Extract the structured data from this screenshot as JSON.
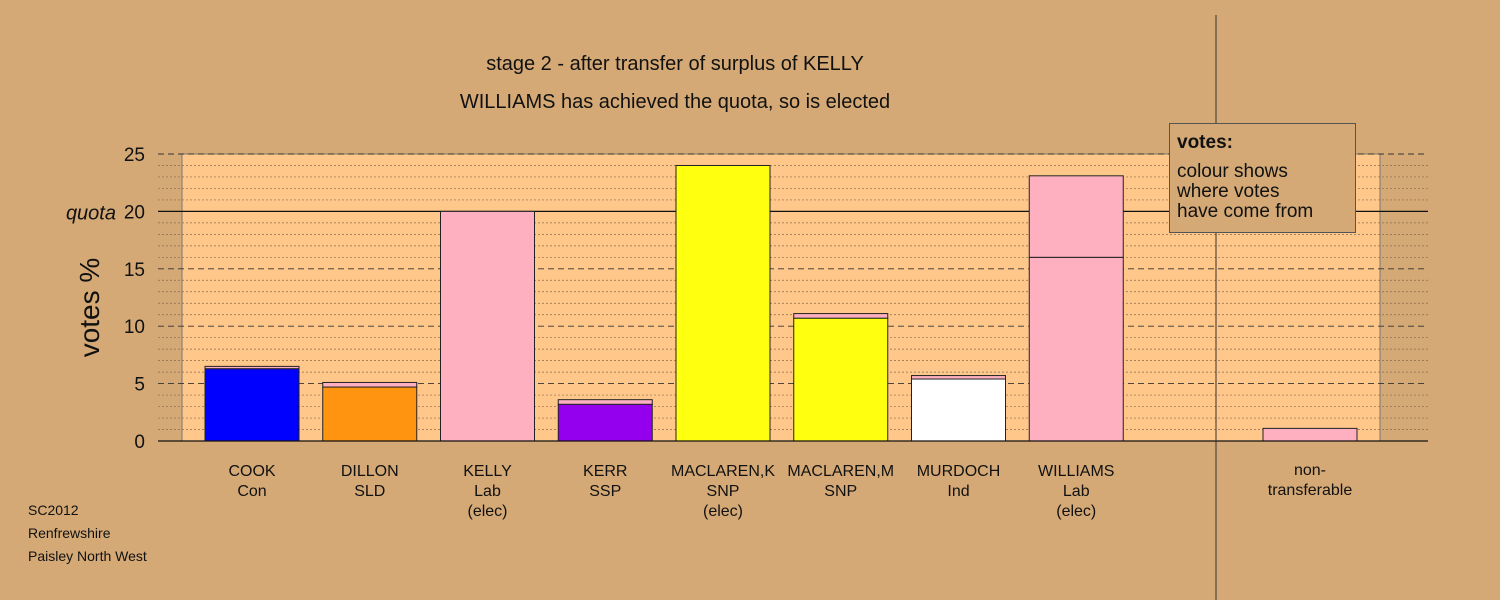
{
  "header": {
    "title_line1": "stage 2 - after transfer of surplus of KELLY",
    "title_line2": "WILLIAMS has achieved the quota, so is elected"
  },
  "footer": {
    "line1": "SC2012",
    "line2": "Renfrewshire",
    "line3": "Paisley North West"
  },
  "legend": {
    "title": "votes:",
    "lines": [
      "colour shows",
      "where votes",
      "have come from"
    ]
  },
  "chart_data": {
    "type": "bar",
    "stacked": true,
    "ylabel": "votes %",
    "quota_label": "quota",
    "quota": 20,
    "ylim": [
      0,
      25
    ],
    "yticks": [
      0,
      5,
      10,
      15,
      20,
      25
    ],
    "grid": true,
    "categories": [
      {
        "name": "COOK",
        "party": "Con",
        "note": ""
      },
      {
        "name": "DILLON",
        "party": "SLD",
        "note": ""
      },
      {
        "name": "KELLY",
        "party": "Lab",
        "note": "(elec)"
      },
      {
        "name": "KERR",
        "party": "SSP",
        "note": ""
      },
      {
        "name": "MACLAREN,K",
        "party": "SNP",
        "note": "(elec)"
      },
      {
        "name": "MACLAREN,M",
        "party": "SNP",
        "note": ""
      },
      {
        "name": "MURDOCH",
        "party": "Ind",
        "note": ""
      },
      {
        "name": "WILLIAMS",
        "party": "Lab",
        "note": "(elec)"
      }
    ],
    "nontransferable_label": [
      "non-",
      "transferable"
    ],
    "bars": [
      {
        "segments": [
          {
            "value": 6.3,
            "color": "#0000ff"
          },
          {
            "value": 0.2,
            "color": "#ffb0c0"
          }
        ]
      },
      {
        "segments": [
          {
            "value": 4.7,
            "color": "#ff9410"
          },
          {
            "value": 0.4,
            "color": "#ffb0c0"
          }
        ]
      },
      {
        "segments": [
          {
            "value": 20.0,
            "color": "#ffb0c0"
          }
        ]
      },
      {
        "segments": [
          {
            "value": 3.2,
            "color": "#9400ee"
          },
          {
            "value": 0.4,
            "color": "#ffb0c0"
          }
        ]
      },
      {
        "segments": [
          {
            "value": 24.0,
            "color": "#ffff10"
          }
        ]
      },
      {
        "segments": [
          {
            "value": 10.7,
            "color": "#ffff10"
          },
          {
            "value": 0.4,
            "color": "#ffb0c0"
          }
        ]
      },
      {
        "segments": [
          {
            "value": 5.4,
            "color": "#ffffff"
          },
          {
            "value": 0.3,
            "color": "#ffb0c0"
          }
        ]
      },
      {
        "segments": [
          {
            "value": 16.0,
            "color": "#ffb0c0"
          },
          {
            "value": 7.1,
            "color": "#ffb0c0"
          }
        ]
      }
    ],
    "nontransferable_value": 1.1,
    "nontransferable_color": "#ffb0c0",
    "plot_bg": "#ffc88a"
  }
}
